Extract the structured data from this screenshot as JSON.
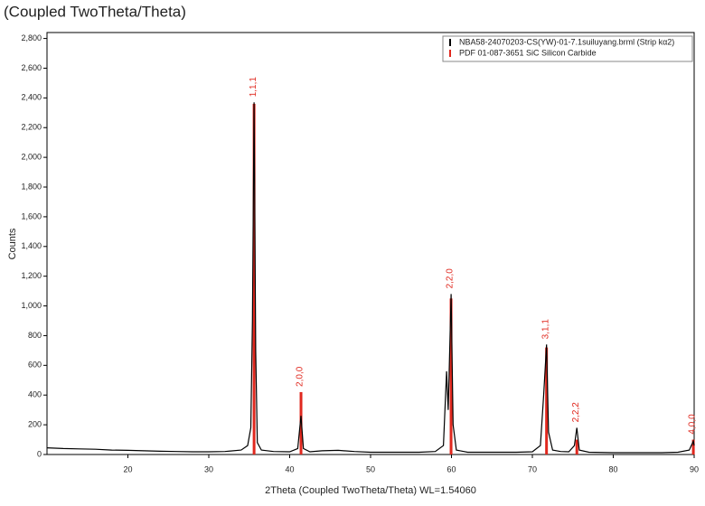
{
  "chart_data": {
    "type": "line",
    "title": "(Coupled TwoTheta/Theta)",
    "x_label": "2Theta (Coupled TwoTheta/Theta) WL=1.54060",
    "y_label": "Counts",
    "xlim": [
      10,
      90
    ],
    "xticks": [
      20,
      30,
      40,
      50,
      60,
      70,
      80,
      90
    ],
    "ylim": [
      0,
      2840
    ],
    "yticks": [
      0,
      200,
      400,
      600,
      800,
      {
        "value": 1000,
        "label": "1,000"
      },
      {
        "value": 1200,
        "label": "1,200"
      },
      {
        "value": 1400,
        "label": "1,400"
      },
      {
        "value": 1600,
        "label": "1,600"
      },
      {
        "value": 1800,
        "label": "1,800"
      },
      {
        "value": 2000,
        "label": "2,000"
      },
      {
        "value": 2200,
        "label": "2,200"
      },
      {
        "value": 2400,
        "label": "2,400"
      },
      {
        "value": 2600,
        "label": "2,600"
      },
      {
        "value": 2800,
        "label": "2,800"
      }
    ],
    "legend": "top-right",
    "x": [
      10,
      12,
      14,
      16,
      18,
      20,
      22,
      24,
      26,
      28,
      30,
      32,
      34,
      34.8,
      35.2,
      35.4,
      35.6,
      35.8,
      36.0,
      36.5,
      38,
      40,
      41.0,
      41.4,
      41.7,
      42.5,
      44,
      46,
      48,
      50,
      52,
      54,
      56,
      58,
      59.0,
      59.4,
      59.6,
      59.95,
      60.2,
      60.6,
      62,
      64,
      66,
      68,
      70,
      71.0,
      71.4,
      71.75,
      72.0,
      72.5,
      73.5,
      74.5,
      75.2,
      75.5,
      75.8,
      77,
      80,
      83,
      86,
      88,
      89.4,
      89.9,
      90
    ],
    "series": [
      {
        "name": "NBA58-24070203-CS(YW)-01-7.1suiluyang.brml (Strip kα2)",
        "color": "#000000",
        "values": [
          45,
          40,
          38,
          35,
          30,
          28,
          25,
          22,
          20,
          18,
          18,
          20,
          30,
          60,
          180,
          900,
          2370,
          700,
          80,
          30,
          20,
          18,
          40,
          260,
          40,
          18,
          25,
          28,
          20,
          15,
          15,
          15,
          15,
          20,
          60,
          560,
          300,
          1080,
          200,
          30,
          15,
          15,
          15,
          15,
          18,
          60,
          400,
          740,
          150,
          30,
          20,
          18,
          60,
          180,
          30,
          15,
          12,
          12,
          12,
          15,
          30,
          90,
          60
        ]
      }
    ],
    "reference": {
      "name": "PDF 01-087-3651 SiC Silicon Carbide",
      "color": "#e0281e",
      "x": [
        35.6,
        41.4,
        59.95,
        71.75,
        75.5,
        89.9
      ],
      "values": [
        2360,
        420,
        1050,
        720,
        100,
        100
      ],
      "labels": [
        "1,1,1",
        "2,0,0",
        "2,2,0",
        "3,1,1",
        "2,2,2",
        "4,0,0"
      ]
    }
  }
}
